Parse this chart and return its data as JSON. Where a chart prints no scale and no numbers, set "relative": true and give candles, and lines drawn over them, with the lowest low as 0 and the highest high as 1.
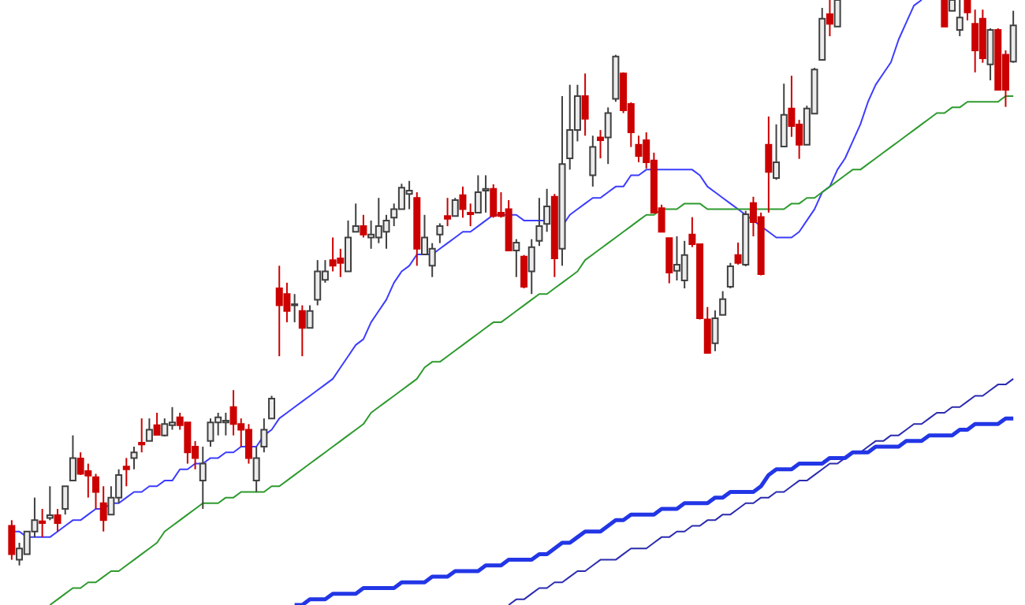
{
  "chart_data": {
    "type": "candlestick",
    "relative": true,
    "colors": [
      "#cc0000",
      "#ececec",
      "#ececec",
      "#ececec",
      "#cc0000",
      "#ececec",
      "#cc0000",
      "#ececec",
      "#ececec",
      "#cc0000",
      "#cc0000",
      "#cc0000",
      "#cc0000",
      "#ececec",
      "#ececec",
      "#cc0000",
      "#ececec",
      "#cc0000",
      "#ececec",
      "#cc0000",
      "#ececec",
      "#ececec",
      "#cc0000",
      "#cc0000",
      "#cc0000",
      "#ececec",
      "#ececec",
      "#ececec",
      "#ececec",
      "#cc0000",
      "#cc0000",
      "#cc0000",
      "#ececec",
      "#ececec",
      "#ececec",
      "#cc0000",
      "#cc0000",
      "#ececec",
      "#cc0000",
      "#ececec",
      "#ececec",
      "#ececec",
      "#cc0000",
      "#cc0000",
      "#ececec",
      "#ececec",
      "#cc0000",
      "#ececec",
      "#ececec",
      "#ececec",
      "#ececec",
      "#ececec",
      "#ececec",
      "#cc0000",
      "#ececec",
      "#ececec",
      "#ececec",
      "#cc0000",
      "#ececec",
      "#cc0000",
      "#cc0000",
      "#ececec",
      "#ececec",
      "#cc0000",
      "#cc0000",
      "#cc0000",
      "#ececec",
      "#cc0000",
      "#ececec",
      "#ececec",
      "#ececec",
      "#cc0000",
      "#ececec",
      "#ececec",
      "#ececec",
      "#cc0000",
      "#ececec",
      "#cc0000",
      "#ececec",
      "#ececec",
      "#cc0000",
      "#cc0000",
      "#cc0000",
      "#cc0000",
      "#cc0000",
      "#cc0000",
      "#cc0000",
      "#ececec",
      "#ececec",
      "#cc0000",
      "#cc0000",
      "#cc0000",
      "#ececec",
      "#ececec",
      "#ececec",
      "#cc0000",
      "#ececec",
      "#cc0000",
      "#cc0000",
      "#cc0000",
      "#ececec",
      "#ececec",
      "#cc0000",
      "#cc0000",
      "#ececec",
      "#ececec",
      "#ececec",
      "#cc0000",
      "#ececec",
      null,
      null,
      null,
      null,
      null,
      null,
      null,
      null,
      null,
      null,
      null,
      null,
      null,
      "#cc0000",
      "#ececec",
      "#ececec",
      "#cc0000",
      "#cc0000",
      "#cc0000",
      "#ececec",
      "#cc0000",
      "#cc0000",
      "#ececec"
    ],
    "categories": [
      null,
      null,
      null,
      null,
      null,
      null,
      null,
      null,
      null,
      null,
      null,
      null,
      null,
      null,
      null,
      null,
      null,
      null,
      null,
      null,
      null,
      null,
      null,
      null,
      null,
      null,
      null,
      null,
      null,
      null,
      null,
      null,
      null,
      null,
      null,
      null,
      null,
      null,
      null,
      null,
      null,
      null,
      null,
      null,
      null,
      null,
      null,
      null,
      null,
      null,
      null,
      null,
      null,
      null,
      null,
      null,
      null,
      null,
      null,
      null,
      null,
      null,
      null,
      null,
      null,
      null,
      null,
      null,
      null,
      null,
      null,
      null,
      null,
      null,
      null,
      null,
      null,
      null,
      null,
      null,
      null,
      null,
      null,
      null,
      null,
      null,
      null,
      null,
      null,
      null,
      null,
      null,
      null,
      null,
      null,
      null,
      null,
      null,
      null,
      null,
      null,
      null,
      null,
      null,
      null,
      null,
      null,
      null,
      null,
      null,
      null,
      null,
      null,
      null,
      null,
      null,
      null,
      null,
      null,
      null,
      null,
      null,
      null,
      null,
      null,
      null,
      null,
      null,
      null,
      null,
      null,
      null
    ],
    "ohlc": [
      [
        0.07,
        0.08,
        0.01,
        0.02
      ],
      [
        0.01,
        0.04,
        0,
        0.03
      ],
      [
        0.02,
        0.06,
        0.02,
        0.06
      ],
      [
        0.06,
        0.12,
        0.05,
        0.08
      ],
      [
        0.078,
        0.1,
        0.05,
        0.075
      ],
      [
        0.084,
        0.14,
        0.08,
        0.089
      ],
      [
        0.089,
        0.1,
        0.06,
        0.075
      ],
      [
        0.1,
        0.14,
        0.09,
        0.14
      ],
      [
        0.15,
        0.23,
        0.15,
        0.19
      ],
      [
        0.189,
        0.2,
        0.16,
        0.162
      ],
      [
        0.167,
        0.18,
        0.12,
        0.159
      ],
      [
        0.156,
        0.162,
        0.1,
        0.13
      ],
      [
        0.11,
        0.14,
        0.06,
        0.08
      ],
      [
        0.09,
        0.14,
        0.09,
        0.12
      ],
      [
        0.12,
        0.17,
        0.11,
        0.16
      ],
      [
        0.175,
        0.19,
        0.14,
        0.17
      ],
      [
        0.19,
        0.21,
        0.17,
        0.2
      ],
      [
        0.217,
        0.26,
        0.2,
        0.214
      ],
      [
        0.22,
        0.26,
        0.22,
        0.24
      ],
      [
        0.248,
        0.27,
        0.23,
        0.231
      ],
      [
        0.23,
        0.26,
        0.228,
        0.25
      ],
      [
        0.248,
        0.28,
        0.24,
        0.253
      ],
      [
        0.262,
        0.27,
        0.24,
        0.248
      ],
      [
        0.253,
        0.253,
        0.18,
        0.2
      ],
      [
        0.21,
        0.22,
        0.17,
        0.19
      ],
      [
        0.15,
        0.21,
        0.1,
        0.18
      ],
      [
        0.22,
        0.26,
        0.21,
        0.253
      ],
      [
        0.253,
        0.27,
        0.23,
        0.262
      ],
      [
        0.253,
        0.27,
        0.23,
        0.256
      ],
      [
        0.28,
        0.31,
        0.23,
        0.25
      ],
      [
        0.25,
        0.26,
        0.21,
        0.24
      ],
      [
        0.24,
        0.25,
        0.18,
        0.19
      ],
      [
        0.15,
        0.21,
        0.13,
        0.19
      ],
      [
        0.21,
        0.26,
        0.2,
        0.24
      ],
      [
        0.26,
        0.3,
        0.26,
        0.295
      ],
      [
        0.49,
        0.53,
        0.37,
        0.46
      ],
      [
        0.48,
        0.5,
        0.43,
        0.45
      ],
      [
        0.46,
        0.48,
        0.43,
        0.462
      ],
      [
        0.45,
        0.46,
        0.37,
        0.42
      ],
      [
        0.42,
        0.46,
        0.42,
        0.45
      ],
      [
        0.47,
        0.54,
        0.46,
        0.52
      ],
      [
        0.505,
        0.54,
        0.5,
        0.52
      ],
      [
        0.54,
        0.58,
        0.52,
        0.53
      ],
      [
        0.543,
        0.56,
        0.51,
        0.535
      ],
      [
        0.52,
        0.61,
        0.52,
        0.58
      ],
      [
        0.59,
        0.64,
        0.59,
        0.6
      ],
      [
        0.6,
        0.62,
        0.58,
        0.585
      ],
      [
        0.58,
        0.61,
        0.56,
        0.585
      ],
      [
        0.58,
        0.65,
        0.57,
        0.6
      ],
      [
        0.59,
        0.62,
        0.56,
        0.61
      ],
      [
        0.615,
        0.64,
        0.6,
        0.63
      ],
      [
        0.63,
        0.675,
        0.63,
        0.668
      ],
      [
        0.657,
        0.68,
        0.63,
        0.663
      ],
      [
        0.65,
        0.66,
        0.53,
        0.56
      ],
      [
        0.55,
        0.62,
        0.55,
        0.58
      ],
      [
        0.53,
        0.57,
        0.51,
        0.56
      ],
      [
        0.585,
        0.605,
        0.57,
        0.6
      ],
      [
        0.618,
        0.65,
        0.6,
        0.613
      ],
      [
        0.618,
        0.65,
        0.618,
        0.646
      ],
      [
        0.655,
        0.67,
        0.615,
        0.63
      ],
      [
        0.624,
        0.64,
        0.6,
        0.621
      ],
      [
        0.624,
        0.69,
        0.624,
        0.66
      ],
      [
        0.663,
        0.69,
        0.624,
        0.666
      ],
      [
        0.666,
        0.674,
        0.615,
        0.618
      ],
      [
        0.624,
        0.66,
        0.615,
        0.618
      ],
      [
        0.63,
        0.646,
        0.557,
        0.557
      ],
      [
        0.557,
        0.577,
        0.51,
        0.571
      ],
      [
        0.546,
        0.549,
        0.49,
        0.493
      ],
      [
        0.52,
        0.577,
        0.48,
        0.563
      ],
      [
        0.574,
        0.65,
        0.565,
        0.6
      ],
      [
        0.604,
        0.666,
        0.59,
        0.635
      ],
      [
        0.652,
        0.657,
        0.51,
        0.543
      ],
      [
        0.56,
        0.83,
        0.53,
        0.71
      ],
      [
        0.72,
        0.85,
        0.7,
        0.77
      ],
      [
        0.77,
        0.85,
        0.75,
        0.83
      ],
      [
        0.83,
        0.87,
        0.76,
        0.79
      ],
      [
        0.69,
        0.76,
        0.67,
        0.74
      ],
      [
        0.757,
        0.77,
        0.72,
        0.752
      ],
      [
        0.757,
        0.81,
        0.71,
        0.8
      ],
      [
        0.825,
        0.903,
        0.82,
        0.9
      ],
      [
        0.87,
        0.872,
        0.8,
        0.805
      ],
      [
        0.816,
        0.819,
        0.74,
        0.766
      ],
      [
        0.744,
        0.76,
        0.713,
        0.724
      ],
      [
        0.752,
        0.766,
        0.702,
        0.713
      ],
      [
        0.716,
        0.73,
        0.624,
        0.624
      ],
      [
        0.632,
        0.638,
        0.59,
        0.59
      ],
      [
        0.579,
        0.579,
        0.499,
        0.518
      ],
      [
        0.521,
        0.582,
        0.504,
        0.532
      ],
      [
        0.504,
        0.574,
        0.49,
        0.549
      ],
      [
        0.585,
        0.616,
        0.563,
        0.568
      ],
      [
        0.568,
        0.568,
        0.435,
        0.437
      ],
      [
        0.435,
        0.457,
        0.376,
        0.376
      ],
      [
        0.393,
        0.451,
        0.379,
        0.437
      ],
      [
        0.443,
        0.485,
        0.443,
        0.471
      ],
      [
        0.493,
        0.535,
        0.49,
        0.529
      ],
      [
        0.549,
        0.571,
        0.532,
        0.535
      ],
      [
        0.532,
        0.627,
        0.529,
        0.621
      ],
      [
        0.641,
        0.652,
        0.582,
        0.607
      ],
      [
        0.616,
        0.624,
        0.513,
        0.515
      ],
      [
        0.744,
        0.794,
        0.624,
        0.696
      ],
      [
        0.685,
        0.78,
        0.682,
        0.713
      ],
      [
        0.741,
        0.852,
        0.741,
        0.797
      ],
      [
        0.808,
        0.866,
        0.758,
        0.777
      ],
      [
        0.78,
        0.788,
        0.719,
        0.744
      ],
      [
        0.744,
        0.813,
        0.744,
        0.808
      ],
      [
        0.799,
        0.88,
        0.799,
        0.877
      ],
      [
        0.894,
        0.986,
        0.894,
        0.967
      ],
      [
        0.975,
        1,
        0.936,
        0.958
      ],
      [
        0.953,
        1,
        0.953,
        1
      ],
      null,
      null,
      null,
      null,
      null,
      null,
      null,
      null,
      null,
      null,
      null,
      null,
      null,
      [
        1,
        1,
        0.953,
        0.953
      ],
      [
        0.981,
        1,
        0.981,
        1
      ],
      [
        0.947,
        1,
        0.936,
        0.969
      ],
      [
        1,
        1,
        0.964,
        0.978
      ],
      [
        0.958,
        0.983,
        0.872,
        0.911
      ],
      [
        0.967,
        0.983,
        0.889,
        0.897
      ],
      [
        0.886,
        0.95,
        0.858,
        0.947
      ],
      [
        0.947,
        0.95,
        0.841,
        0.841
      ],
      [
        0.903,
        0.911,
        0.811,
        0.841
      ],
      [
        0.891,
        0.981,
        0.889,
        0.955
      ]
    ],
    "series": [
      {
        "type": "line",
        "color": "#3c3cff",
        "values": [
          0.06,
          0.06,
          0.05,
          0.05,
          0.05,
          0.05,
          0.06,
          0.07,
          0.08,
          0.08,
          0.09,
          0.1,
          0.1,
          0.11,
          0.11,
          0.12,
          0.13,
          0.13,
          0.14,
          0.14,
          0.15,
          0.15,
          0.17,
          0.17,
          0.18,
          0.18,
          0.19,
          0.19,
          0.2,
          0.2,
          0.21,
          0.21,
          0.21,
          0.23,
          0.24,
          0.26,
          0.27,
          0.28,
          0.29,
          0.3,
          0.31,
          0.32,
          0.33,
          0.35,
          0.37,
          0.39,
          0.4,
          0.43,
          0.45,
          0.47,
          0.5,
          0.52,
          0.53,
          0.55,
          0.55,
          0.55,
          0.56,
          0.57,
          0.58,
          0.59,
          0.59,
          0.6,
          0.61,
          0.62,
          0.62,
          0.62,
          0.62,
          0.61,
          0.61,
          0.61,
          0.61,
          null,
          0.6,
          0.62,
          0.63,
          0.64,
          0.65,
          0.65,
          0.66,
          0.67,
          0.67,
          0.69,
          0.69,
          0.7,
          0.7,
          0.7,
          0.7,
          0.7,
          0.7,
          0.7,
          0.69,
          0.67,
          0.66,
          0.65,
          0.64,
          0.63,
          0.62,
          0.61,
          0.6,
          0.59,
          0.58,
          0.58,
          0.58,
          0.59,
          0.61,
          0.63,
          0.66,
          0.67,
          0.7,
          0.72,
          0.75,
          0.78,
          0.82,
          0.85,
          0.87,
          0.89,
          0.93,
          0.96,
          0.99,
          1.0,
          null,
          null,
          null,
          null,
          null,
          null,
          null,
          null,
          null,
          null,
          null,
          null
        ]
      },
      {
        "type": "line",
        "color": "#2e9a2e",
        "values": [
          null,
          null,
          null,
          null,
          null,
          -0.07,
          -0.06,
          -0.05,
          -0.04,
          -0.04,
          -0.03,
          -0.03,
          -0.02,
          -0.01,
          -0.01,
          0,
          0.01,
          0.02,
          0.03,
          0.04,
          0.06,
          0.07,
          0.08,
          0.09,
          0.1,
          0.11,
          0.11,
          0.11,
          0.12,
          0.12,
          0.13,
          0.13,
          0.13,
          0.13,
          0.14,
          0.14,
          0.15,
          0.16,
          0.17,
          0.18,
          0.19,
          0.2,
          0.21,
          0.22,
          0.23,
          0.24,
          0.25,
          0.27,
          0.28,
          0.29,
          0.3,
          0.31,
          0.32,
          0.33,
          0.35,
          0.36,
          0.36,
          0.37,
          0.38,
          0.39,
          0.4,
          0.41,
          0.42,
          0.43,
          0.43,
          0.44,
          0.45,
          0.46,
          0.47,
          0.48,
          0.48,
          0.49,
          0.5,
          0.51,
          0.52,
          0.54,
          0.55,
          0.56,
          0.57,
          0.58,
          0.59,
          0.6,
          0.61,
          0.62,
          0.62,
          0.63,
          0.63,
          0.63,
          0.64,
          0.64,
          0.64,
          0.63,
          0.63,
          0.63,
          0.63,
          0.63,
          0.63,
          0.63,
          0.63,
          0.63,
          0.63,
          0.63,
          0.64,
          0.64,
          0.65,
          0.65,
          0.66,
          0.67,
          0.68,
          0.69,
          0.7,
          0.7,
          0.71,
          0.72,
          0.73,
          0.74,
          0.75,
          0.76,
          0.77,
          0.78,
          0.79,
          0.8,
          0.8,
          0.81,
          0.81,
          0.82,
          0.82,
          0.82,
          0.82,
          0.82,
          0.83,
          0.83
        ]
      },
      {
        "type": "line",
        "color": "#2b2bb0",
        "values": [
          null,
          null,
          null,
          null,
          null,
          null,
          null,
          null,
          null,
          null,
          null,
          null,
          null,
          null,
          null,
          null,
          null,
          null,
          null,
          null,
          null,
          null,
          null,
          null,
          null,
          null,
          null,
          null,
          null,
          null,
          null,
          null,
          null,
          null,
          null,
          null,
          null,
          null,
          null,
          null,
          null,
          null,
          null,
          null,
          null,
          null,
          null,
          null,
          null,
          null,
          null,
          null,
          null,
          null,
          null,
          null,
          null,
          null,
          null,
          null,
          null,
          null,
          null,
          null,
          null,
          -0.07,
          -0.06,
          -0.06,
          -0.05,
          -0.04,
          -0.04,
          -0.03,
          -0.03,
          -0.02,
          -0.01,
          -0.01,
          0,
          0.01,
          0.01,
          0.01,
          0.02,
          0.03,
          0.03,
          0.03,
          0.04,
          0.05,
          0.05,
          0.06,
          0.06,
          0.07,
          0.07,
          0.08,
          0.08,
          0.09,
          0.09,
          0.1,
          0.11,
          0.11,
          0.12,
          0.12,
          0.13,
          0.13,
          0.14,
          0.15,
          0.15,
          0.16,
          0.17,
          0.18,
          0.18,
          0.19,
          0.2,
          0.2,
          0.21,
          0.22,
          0.22,
          0.23,
          0.23,
          0.24,
          0.25,
          0.25,
          0.26,
          0.27,
          0.27,
          0.28,
          0.28,
          0.29,
          0.3,
          0.3,
          0.31,
          0.32,
          0.32,
          0.33
        ]
      },
      {
        "type": "line",
        "color": "#2236e6",
        "values": [
          null,
          null,
          null,
          null,
          null,
          null,
          null,
          null,
          null,
          null,
          null,
          null,
          null,
          null,
          null,
          null,
          null,
          null,
          null,
          null,
          null,
          null,
          null,
          null,
          null,
          null,
          null,
          null,
          null,
          null,
          null,
          null,
          null,
          null,
          null,
          null,
          null,
          -0.07,
          -0.07,
          -0.06,
          -0.06,
          -0.06,
          -0.05,
          -0.05,
          -0.05,
          -0.05,
          -0.04,
          -0.04,
          -0.04,
          -0.04,
          -0.04,
          -0.03,
          -0.03,
          -0.03,
          -0.03,
          -0.02,
          -0.02,
          -0.02,
          -0.01,
          -0.01,
          -0.01,
          -0.01,
          0,
          0,
          0,
          0.01,
          0.01,
          0.01,
          0.01,
          0.02,
          0.02,
          0.03,
          0.04,
          0.04,
          0.05,
          0.06,
          0.06,
          0.06,
          0.07,
          0.08,
          0.08,
          0.09,
          0.09,
          0.09,
          0.09,
          0.1,
          0.1,
          0.1,
          0.11,
          0.11,
          0.11,
          0.11,
          0.12,
          0.12,
          0.13,
          0.13,
          0.13,
          0.13,
          0.14,
          0.16,
          0.17,
          0.17,
          0.17,
          0.18,
          0.18,
          0.18,
          0.18,
          0.19,
          0.19,
          0.19,
          0.2,
          0.2,
          0.2,
          0.21,
          0.21,
          0.21,
          0.21,
          0.22,
          0.22,
          0.22,
          0.23,
          0.23,
          0.23,
          0.23,
          0.24,
          0.24,
          0.25,
          0.25,
          0.25,
          0.25,
          0.26,
          0.26
        ]
      }
    ]
  }
}
